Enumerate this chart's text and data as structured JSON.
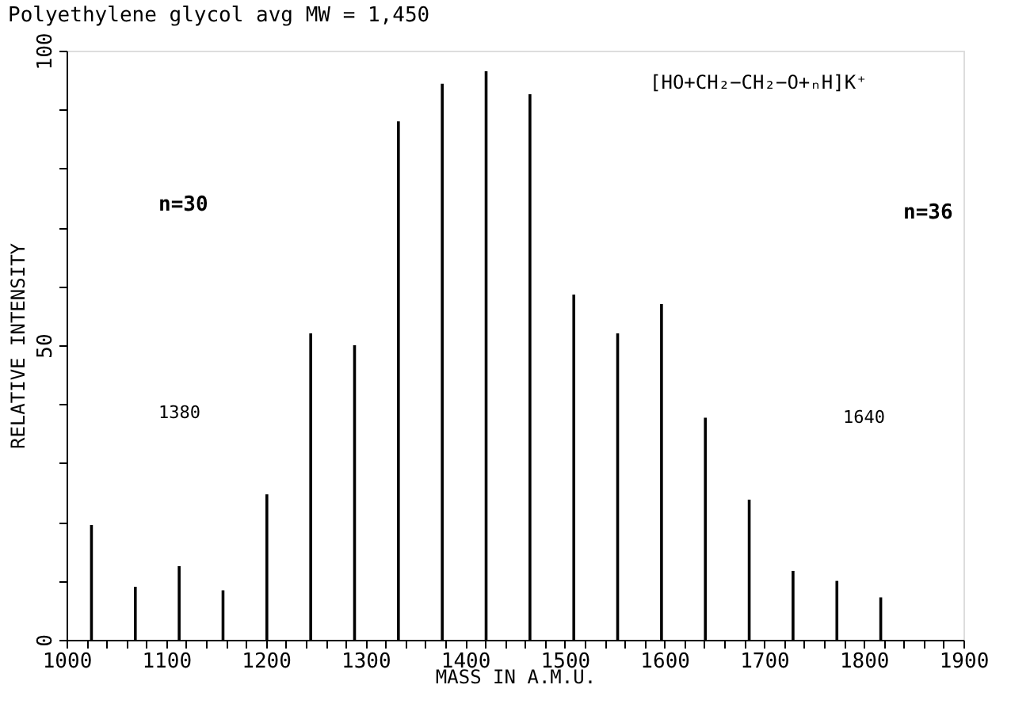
{
  "chart_data": {
    "type": "bar",
    "title": "Polyethylene glycol avg MW = 1,450",
    "xlabel": "MASS IN A.M.U.",
    "ylabel": "RELATIVE INTENSITY",
    "x": [
      1025,
      1069,
      1113,
      1157,
      1201,
      1245,
      1289,
      1333,
      1377,
      1421,
      1465,
      1509,
      1553,
      1597,
      1641,
      1685,
      1729,
      1773,
      1817
    ],
    "values": [
      19.5,
      9,
      12.5,
      8.4,
      24.7,
      52,
      50,
      88,
      94.4,
      96.5,
      92.6,
      58.6,
      52,
      57,
      37.7,
      23.8,
      11.7,
      10,
      7.2
    ],
    "color": "#000000",
    "xlim": [
      1000,
      1900
    ],
    "xticks": [
      1000,
      {
        "value": 1020,
        "label": null
      },
      {
        "value": 1040,
        "label": null
      },
      {
        "value": 1060,
        "label": null
      },
      {
        "value": 1080,
        "label": null
      },
      1100,
      {
        "value": 1120,
        "label": null
      },
      {
        "value": 1140,
        "label": null
      },
      {
        "value": 1160,
        "label": null
      },
      {
        "value": 1180,
        "label": null
      },
      1200,
      {
        "value": 1220,
        "label": null
      },
      {
        "value": 1240,
        "label": null
      },
      {
        "value": 1260,
        "label": null
      },
      {
        "value": 1280,
        "label": null
      },
      1300,
      {
        "value": 1320,
        "label": null
      },
      {
        "value": 1340,
        "label": null
      },
      {
        "value": 1360,
        "label": null
      },
      {
        "value": 1380,
        "label": null
      },
      1400,
      {
        "value": 1420,
        "label": null
      },
      {
        "value": 1440,
        "label": null
      },
      {
        "value": 1460,
        "label": null
      },
      {
        "value": 1480,
        "label": null
      },
      1500,
      {
        "value": 1520,
        "label": null
      },
      {
        "value": 1540,
        "label": null
      },
      {
        "value": 1560,
        "label": null
      },
      {
        "value": 1580,
        "label": null
      },
      1600,
      {
        "value": 1620,
        "label": null
      },
      {
        "value": 1640,
        "label": null
      },
      {
        "value": 1660,
        "label": null
      },
      {
        "value": 1680,
        "label": null
      },
      1700,
      {
        "value": 1720,
        "label": null
      },
      {
        "value": 1740,
        "label": null
      },
      {
        "value": 1760,
        "label": null
      },
      {
        "value": 1780,
        "label": null
      },
      1800,
      {
        "value": 1820,
        "label": null
      },
      {
        "value": 1840,
        "label": null
      },
      {
        "value": 1860,
        "label": null
      },
      {
        "value": 1880,
        "label": null
      },
      1900
    ],
    "ylim": [
      0,
      100
    ],
    "yticks": [
      0,
      {
        "value": 10,
        "label": null
      },
      {
        "value": 20,
        "label": null
      },
      {
        "value": 30,
        "label": null
      },
      {
        "value": 40,
        "label": null
      },
      50,
      {
        "value": 60,
        "label": null
      },
      {
        "value": 70,
        "label": null
      },
      {
        "value": 80,
        "label": null
      },
      {
        "value": 90,
        "label": null
      },
      100
    ],
    "grid": false,
    "annotations": [
      "[HO+CH₂−CH₂−O+ₙH]K⁺",
      "n=30",
      "1380",
      "n=36",
      "1640"
    ]
  }
}
